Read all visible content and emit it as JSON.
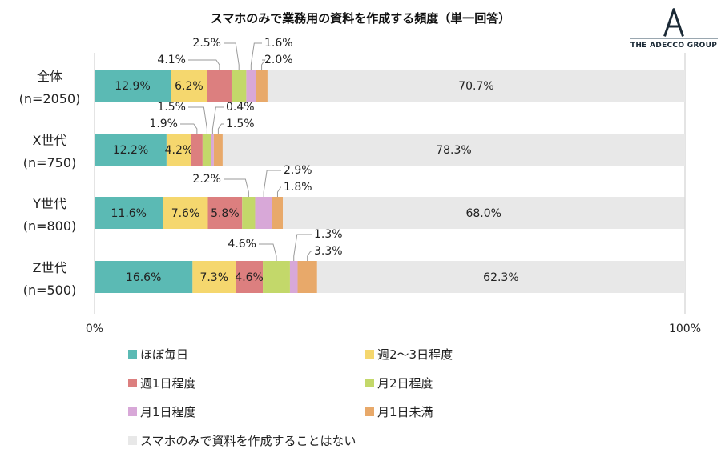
{
  "chart_data": {
    "type": "bar",
    "orientation": "horizontal",
    "stacked": true,
    "percent": true,
    "title": "スマホのみで業務用の資料を作成する頻度（単一回答）",
    "categories": [
      {
        "label": "全体",
        "sublabel": "(n=2050)"
      },
      {
        "label": "X世代",
        "sublabel": "(n=750)"
      },
      {
        "label": "Y世代",
        "sublabel": "(n=800)"
      },
      {
        "label": "Z世代",
        "sublabel": "(n=500)"
      }
    ],
    "series": [
      {
        "name": "ほぼ毎日",
        "color": "#5bbab4",
        "values": [
          12.9,
          12.2,
          11.6,
          16.6
        ]
      },
      {
        "name": "週2～3日程度",
        "color": "#f5d76e",
        "values": [
          6.2,
          4.2,
          7.6,
          7.3
        ]
      },
      {
        "name": "週1日程度",
        "color": "#dc7f7f",
        "values": [
          4.1,
          1.9,
          5.8,
          4.6
        ]
      },
      {
        "name": "月2日程度",
        "color": "#c3d86a",
        "values": [
          2.5,
          1.5,
          2.2,
          4.6
        ]
      },
      {
        "name": "月1日程度",
        "color": "#d8a8d8",
        "values": [
          1.6,
          0.4,
          2.9,
          1.3
        ]
      },
      {
        "name": "月1日未満",
        "color": "#e8a96a",
        "values": [
          2.0,
          1.5,
          1.8,
          3.3
        ]
      },
      {
        "name": "スマホのみで資料を作成することはない",
        "color": "#e8e8e8",
        "values": [
          70.7,
          78.3,
          68.0,
          62.3
        ]
      }
    ],
    "xlim": [
      0,
      100
    ],
    "x_tick_labels": [
      "0%",
      "100%"
    ],
    "value_labels": [
      [
        "12.9%",
        "6.2%",
        "4.1%",
        "2.5%",
        "1.6%",
        "2.0%",
        "70.7%"
      ],
      [
        "12.2%",
        "4.2%",
        "1.9%",
        "1.5%",
        "0.4%",
        "1.5%",
        "78.3%"
      ],
      [
        "11.6%",
        "7.6%",
        "5.8%",
        "2.2%",
        "2.9%",
        "1.8%",
        "68.0%"
      ],
      [
        "16.6%",
        "7.3%",
        "4.6%",
        "4.6%",
        "1.3%",
        "3.3%",
        "62.3%"
      ]
    ],
    "legend_position": "bottom"
  },
  "brand": {
    "logo_letter": "A",
    "name": "THE ADECCO GROUP"
  }
}
